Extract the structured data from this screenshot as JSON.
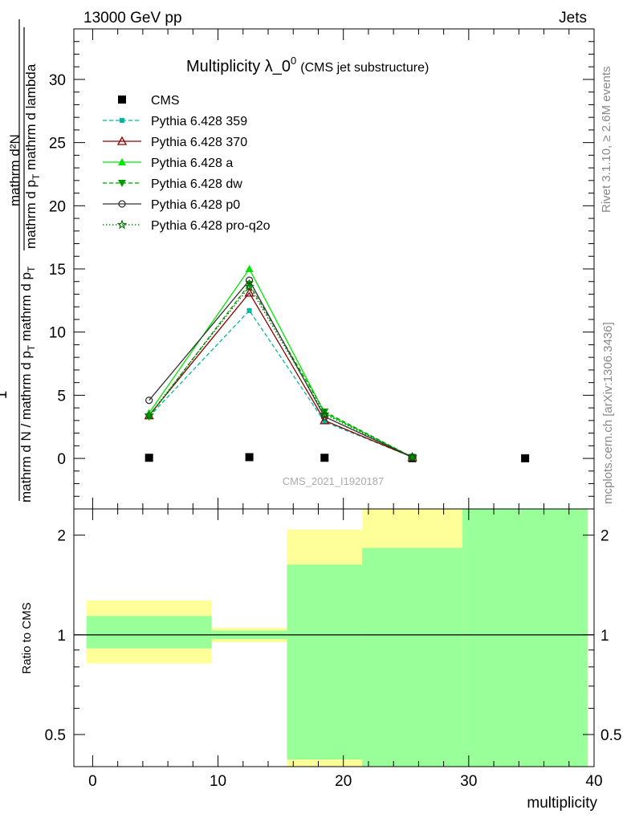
{
  "header": {
    "left": "13000 GeV pp",
    "right": "Jets"
  },
  "side_labels": {
    "rivet": "Rivet 3.1.10, ≥ 2.6M events",
    "mcplots": "mcplots.cern.ch [arXiv:1306.3436]"
  },
  "chart_data": [
    {
      "type": "line",
      "title_main": "Multiplicity λ_0",
      "title_sup": "0",
      "title_paren": "(CMS jet substructure)",
      "watermark": "CMS_2021_I1920187",
      "ylabel_numerator": "mathrm d²N",
      "ylabel_denominator_top": "mathrm d p",
      "ylabel_denominator_top_sub": "T",
      "ylabel_denominator_top_rest": " mathrm d lambda",
      "ylabel_one": "1",
      "ylabel_denominator_bottom": "mathrm d N / mathrm d p",
      "ylabel_denominator_bottom_sub": "T",
      "ylabel_denominator_bottom_rest": " mathrm d p",
      "ylabel_denominator_bottom_sub2": "T",
      "xlim": [
        -1.5,
        40
      ],
      "ylim": [
        -4,
        34
      ],
      "y_ticks": [
        0,
        5,
        10,
        15,
        20,
        25,
        30
      ],
      "y_tick_labels": [
        "0",
        "5",
        "10",
        "15",
        "20",
        "25",
        "30"
      ],
      "legend_position": "top-left",
      "series": [
        {
          "name": "CMS",
          "color": "#000000",
          "marker": "square",
          "line": "none",
          "x": [
            4.5,
            12.5,
            18.5,
            25.5,
            34.5
          ],
          "y": [
            0.05,
            0.1,
            0.05,
            0.02,
            0.01
          ]
        },
        {
          "name": "Pythia 6.428 359",
          "color": "#00b89c",
          "marker": "square-small",
          "line": "dashed",
          "x": [
            4.5,
            12.5,
            18.5,
            25.5
          ],
          "y": [
            3.3,
            11.7,
            2.9,
            0.1
          ]
        },
        {
          "name": "Pythia 6.428 370",
          "color": "#8b0000",
          "marker": "triangle-open",
          "line": "solid",
          "x": [
            4.5,
            12.5,
            18.5,
            25.5
          ],
          "y": [
            3.4,
            13.1,
            3.0,
            0.1
          ]
        },
        {
          "name": "Pythia 6.428 a",
          "color": "#00e600",
          "marker": "triangle",
          "line": "solid",
          "x": [
            4.5,
            12.5,
            18.5,
            25.5
          ],
          "y": [
            3.6,
            15.0,
            3.6,
            0.1
          ]
        },
        {
          "name": "Pythia 6.428 dw",
          "color": "#009900",
          "marker": "triangle-down",
          "line": "dashed",
          "x": [
            4.5,
            12.5,
            18.5,
            25.5
          ],
          "y": [
            3.3,
            13.8,
            3.7,
            0.1
          ]
        },
        {
          "name": "Pythia 6.428 p0",
          "color": "#333333",
          "marker": "circle-open",
          "line": "solid",
          "x": [
            4.5,
            12.5,
            18.5,
            25.5
          ],
          "y": [
            4.6,
            14.1,
            3.3,
            0.1
          ]
        },
        {
          "name": "Pythia 6.428 pro-q2o",
          "color": "#006600",
          "marker": "star",
          "line": "dotted",
          "x": [
            4.5,
            12.5,
            18.5,
            25.5
          ],
          "y": [
            3.4,
            13.6,
            3.5,
            0.1
          ]
        }
      ]
    },
    {
      "type": "area",
      "ylabel": "Ratio to CMS",
      "xlabel": "multiplicity",
      "xlim": [
        -1.5,
        40
      ],
      "ylim": [
        0.4,
        2.4
      ],
      "log_y": true,
      "y_ticks": [
        0.5,
        1,
        2
      ],
      "y_tick_labels": [
        "0.5",
        "1",
        "2"
      ],
      "x_ticks": [
        0,
        10,
        20,
        30,
        40
      ],
      "x_tick_labels": [
        "0",
        "10",
        "20",
        "30",
        "40"
      ],
      "reference": 1,
      "colors": {
        "yellow": "#ffff99",
        "green": "#99ff99"
      },
      "bands": [
        {
          "x": [
            -0.5,
            9.5
          ],
          "yellow": [
            0.82,
            1.27
          ],
          "green": [
            0.91,
            1.14
          ]
        },
        {
          "x": [
            9.5,
            15.5
          ],
          "yellow": [
            0.95,
            1.05
          ],
          "green": [
            0.97,
            1.03
          ]
        },
        {
          "x": [
            15.5,
            21.5
          ],
          "yellow": [
            0.38,
            2.08
          ],
          "green": [
            0.42,
            1.63
          ]
        },
        {
          "x": [
            21.5,
            29.5
          ],
          "yellow": [
            0.38,
            2.42
          ],
          "green": [
            0.38,
            1.83
          ]
        },
        {
          "x": [
            29.5,
            39.5
          ],
          "yellow": [
            0.38,
            2.42
          ],
          "green": [
            0.38,
            2.42
          ]
        }
      ]
    }
  ]
}
